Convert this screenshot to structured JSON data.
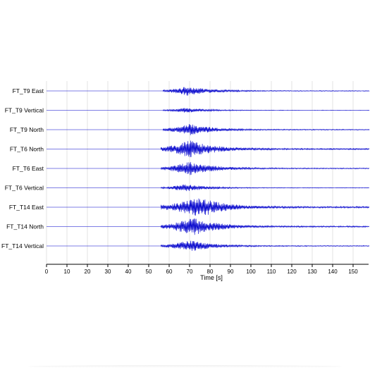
{
  "chart_data": {
    "type": "line",
    "xlabel": "Time [s]",
    "ylabel": "",
    "title": "",
    "xlim": [
      0,
      158
    ],
    "xticks": [
      0,
      10,
      20,
      30,
      40,
      50,
      60,
      70,
      80,
      90,
      100,
      110,
      120,
      130,
      140,
      150
    ],
    "grid": true,
    "legend": "none",
    "trace_color": "#0000cc",
    "series": [
      {
        "name": "FT_T9 East",
        "onset_s": 57,
        "peak_time_s": 69,
        "relative_peak_amplitude": 0.45,
        "trace_end_s": 158
      },
      {
        "name": "FT_T9 Vertical",
        "onset_s": 57,
        "peak_time_s": 68,
        "relative_peak_amplitude": 0.25,
        "trace_end_s": 158
      },
      {
        "name": "FT_T9 North",
        "onset_s": 57,
        "peak_time_s": 70,
        "relative_peak_amplitude": 0.55,
        "trace_end_s": 158
      },
      {
        "name": "FT_T6 North",
        "onset_s": 56,
        "peak_time_s": 70,
        "relative_peak_amplitude": 0.85,
        "trace_end_s": 158
      },
      {
        "name": "FT_T6 East",
        "onset_s": 56,
        "peak_time_s": 70,
        "relative_peak_amplitude": 0.65,
        "trace_end_s": 158
      },
      {
        "name": "FT_T6 Vertical",
        "onset_s": 56,
        "peak_time_s": 68,
        "relative_peak_amplitude": 0.35,
        "trace_end_s": 158
      },
      {
        "name": "FT_T14 East",
        "onset_s": 56,
        "peak_time_s": 75,
        "relative_peak_amplitude": 1.0,
        "trace_end_s": 158
      },
      {
        "name": "FT_T14 North",
        "onset_s": 56,
        "peak_time_s": 72,
        "relative_peak_amplitude": 0.85,
        "trace_end_s": 158
      },
      {
        "name": "FT_T14 Vertical",
        "onset_s": 56,
        "peak_time_s": 70,
        "relative_peak_amplitude": 0.55,
        "trace_end_s": 158
      }
    ]
  }
}
